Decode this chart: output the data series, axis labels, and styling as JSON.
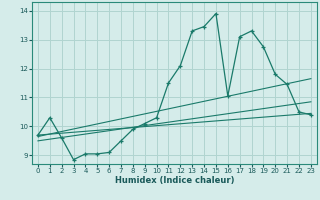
{
  "xlabel": "Humidex (Indice chaleur)",
  "xlim": [
    -0.5,
    23.5
  ],
  "ylim": [
    8.7,
    14.3
  ],
  "xticks": [
    0,
    1,
    2,
    3,
    4,
    5,
    6,
    7,
    8,
    9,
    10,
    11,
    12,
    13,
    14,
    15,
    16,
    17,
    18,
    19,
    20,
    21,
    22,
    23
  ],
  "yticks": [
    9,
    10,
    11,
    12,
    13,
    14
  ],
  "bg_color": "#d5ecea",
  "grid_color": "#b0d4d0",
  "line_color": "#1a7a6a",
  "line1_x": [
    0,
    1,
    2,
    3,
    4,
    5,
    6,
    7,
    8,
    9,
    10,
    11,
    12,
    13,
    14,
    15,
    16,
    17,
    18,
    19,
    20,
    21,
    22,
    23
  ],
  "line1_y": [
    9.7,
    10.3,
    9.6,
    8.85,
    9.05,
    9.05,
    9.1,
    9.5,
    9.9,
    10.1,
    10.3,
    11.5,
    12.1,
    13.3,
    13.45,
    13.9,
    11.05,
    13.1,
    13.3,
    12.75,
    11.8,
    11.45,
    10.5,
    10.4
  ],
  "line2_x": [
    0,
    23
  ],
  "line2_y": [
    9.7,
    10.45
  ],
  "line3_x": [
    0,
    23
  ],
  "line3_y": [
    9.65,
    11.65
  ],
  "line4_x": [
    0,
    23
  ],
  "line4_y": [
    9.5,
    10.85
  ]
}
